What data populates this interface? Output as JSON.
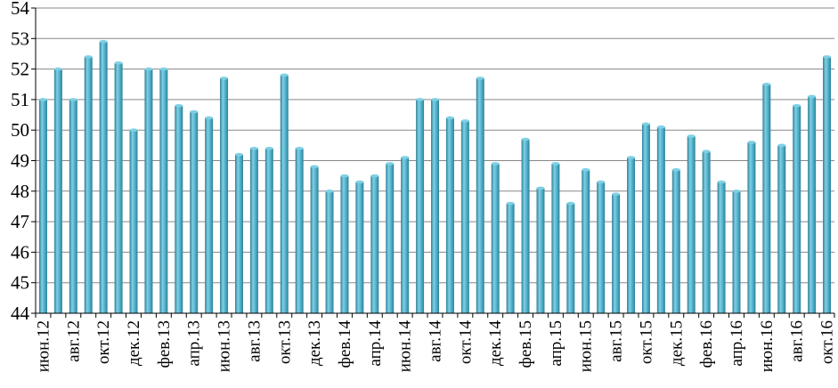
{
  "chart_data": {
    "type": "bar",
    "title": "",
    "xlabel": "",
    "ylabel": "",
    "ylim": [
      44,
      54
    ],
    "y_ticks": [
      "44",
      "45",
      "46",
      "47",
      "48",
      "49",
      "50",
      "51",
      "52",
      "53",
      "54"
    ],
    "grid": true,
    "legend": "none",
    "categories": [
      "июн.12",
      "",
      "авг.12",
      "",
      "окт.12",
      "",
      "дек.12",
      "",
      "фев.13",
      "",
      "апр.13",
      "",
      "июн.13",
      "",
      "авг.13",
      "",
      "окт.13",
      "",
      "дек.13",
      "",
      "фев.14",
      "",
      "апр.14",
      "",
      "июн.14",
      "",
      "авг.14",
      "",
      "окт.14",
      "",
      "дек.14",
      "",
      "фев.15",
      "",
      "апр.15",
      "",
      "июн.15",
      "",
      "авг.15",
      "",
      "окт.15",
      "",
      "дек.15",
      "",
      "фев.16",
      "",
      "апр.16",
      "",
      "июн.16",
      "",
      "авг.16",
      "",
      "окт.16"
    ],
    "values": [
      51.0,
      52.0,
      51.0,
      52.4,
      52.9,
      52.2,
      50.0,
      52.0,
      52.0,
      50.8,
      50.6,
      50.4,
      51.7,
      49.2,
      49.4,
      49.4,
      51.8,
      49.4,
      48.8,
      48.0,
      48.5,
      48.3,
      48.5,
      48.9,
      49.1,
      51.0,
      51.0,
      50.4,
      50.3,
      51.7,
      48.9,
      47.6,
      49.7,
      48.1,
      48.9,
      47.6,
      48.7,
      48.3,
      47.9,
      49.1,
      50.2,
      50.1,
      48.7,
      49.8,
      49.3,
      48.3,
      48.0,
      49.6,
      51.5,
      49.5,
      50.8,
      51.1,
      52.4
    ],
    "colors": {
      "bar_face": "#4bacc6",
      "bar_light": "#7fd0e4",
      "bar_dark": "#2f7f96",
      "grid": "#888888",
      "axis": "#000000"
    }
  }
}
